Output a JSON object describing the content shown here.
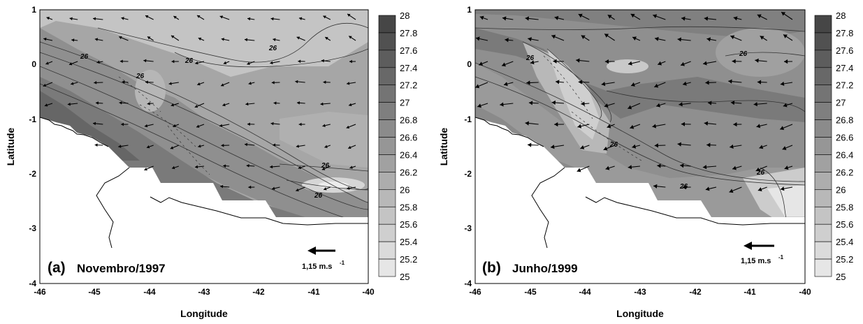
{
  "chart_data": [
    {
      "type": "contour-vector-map",
      "panel_label": "(a)",
      "panel_title": "Novembro/1997",
      "xlabel": "Longitude",
      "ylabel": "Latitude",
      "xlim": [
        -46,
        -40
      ],
      "ylim": [
        -4,
        1
      ],
      "xticks": [
        "-46",
        "-45",
        "-44",
        "-43",
        "-42",
        "-41",
        "-40"
      ],
      "yticks": [
        "1",
        "0",
        "-1",
        "-2",
        "-3",
        "-4"
      ],
      "colorbar_levels": [
        "28",
        "27.8",
        "27.6",
        "27.4",
        "27.2",
        "27",
        "26.8",
        "26.6",
        "26.4",
        "26.2",
        "26",
        "25.8",
        "25.6",
        "25.4",
        "25.2",
        "25"
      ],
      "contour_labels": [
        "26",
        "26",
        "26",
        "26",
        "26",
        "26"
      ],
      "reference_vector": {
        "label": "1,15 m.s",
        "exponent": "-1"
      }
    },
    {
      "type": "contour-vector-map",
      "panel_label": "(b)",
      "panel_title": "Junho/1999",
      "xlabel": "Longitude",
      "ylabel": "Latitude",
      "xlim": [
        -46,
        -40
      ],
      "ylim": [
        -4,
        1
      ],
      "xticks": [
        "-46",
        "-45",
        "-44",
        "-43",
        "-42",
        "-41",
        "-40"
      ],
      "yticks": [
        "1",
        "0",
        "-1",
        "-2",
        "-3",
        "-4"
      ],
      "colorbar_levels": [
        "28",
        "27.8",
        "27.6",
        "27.4",
        "27.2",
        "27",
        "26.8",
        "26.6",
        "26.4",
        "26.2",
        "26",
        "25.8",
        "25.6",
        "25.4",
        "25.2",
        "25"
      ],
      "contour_labels": [
        "26",
        "26",
        "26",
        "26",
        "26"
      ],
      "reference_vector": {
        "label": "1,15 m.s",
        "exponent": "-1"
      }
    }
  ]
}
